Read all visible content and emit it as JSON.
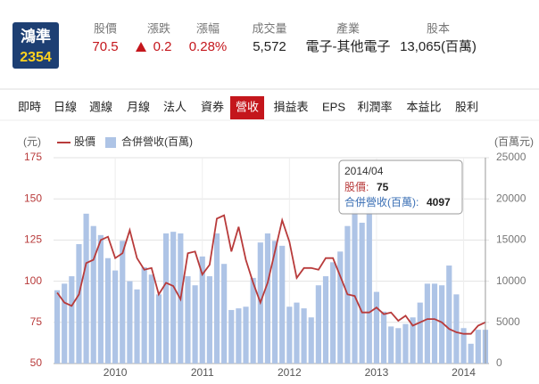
{
  "header": {
    "name": "鴻準",
    "code": "2354",
    "fields": [
      {
        "label": "股價",
        "value": "70.5"
      },
      {
        "label": "漲跌",
        "value": "0.2"
      },
      {
        "label": "漲幅",
        "value": "0.28%"
      },
      {
        "label": "成交量",
        "value": "5,572"
      },
      {
        "label": "產業",
        "value": "電子-其他電子"
      },
      {
        "label": "股本",
        "value": "13,065(百萬)"
      }
    ]
  },
  "tabs": {
    "items": [
      "即時",
      "日線",
      "週線",
      "月線",
      "法人",
      "資券",
      "營收",
      "損益表",
      "EPS",
      "利潤率",
      "本益比",
      "股利"
    ],
    "active": 6
  },
  "chart_data": {
    "type": "bar-line",
    "ylabel": "(元)",
    "y2label": "(百萬元)",
    "categories": [
      null,
      null,
      null,
      null,
      null,
      null,
      null,
      null,
      "2010",
      null,
      null,
      null,
      null,
      null,
      null,
      null,
      null,
      null,
      null,
      null,
      "2011",
      null,
      null,
      null,
      null,
      null,
      null,
      null,
      null,
      null,
      null,
      null,
      "2012",
      null,
      null,
      null,
      null,
      null,
      null,
      null,
      null,
      null,
      null,
      null,
      "2013",
      null,
      null,
      null,
      null,
      null,
      null,
      null,
      null,
      null,
      null,
      null,
      "2014",
      null,
      null,
      null
    ],
    "series": [
      {
        "name": "股價",
        "type": "line",
        "axis": "y",
        "color": "#b83b3b",
        "values": [
          93,
          87,
          85,
          92,
          111,
          113,
          125,
          127,
          114,
          117,
          131,
          114,
          107,
          108,
          92,
          99,
          97,
          89,
          117,
          118,
          104,
          110,
          138,
          140,
          118,
          133,
          113,
          99,
          87,
          99,
          118,
          137,
          124,
          102,
          108,
          108,
          107,
          114,
          114,
          103,
          92,
          91,
          81,
          81,
          84,
          80,
          81,
          76,
          79,
          73,
          75,
          77,
          77,
          75,
          71,
          69,
          68,
          68,
          73,
          75
        ]
      },
      {
        "name": "合併營收(百萬)",
        "type": "bar",
        "axis": "y2",
        "color": "#aec4e6",
        "values": [
          8900,
          9700,
          10600,
          14500,
          18200,
          16700,
          15600,
          12800,
          11300,
          14900,
          10000,
          9000,
          11700,
          10800,
          8400,
          15800,
          16000,
          15800,
          10600,
          9500,
          13000,
          10600,
          15800,
          12100,
          6500,
          6700,
          6900,
          10400,
          14700,
          15800,
          14900,
          14300,
          6900,
          7400,
          6700,
          5600,
          9500,
          10600,
          12300,
          13600,
          16700,
          19900,
          17100,
          20600,
          8700,
          6300,
          4500,
          4300,
          4800,
          5600,
          7400,
          9700,
          9700,
          9500,
          11900,
          8400,
          4300,
          2400,
          4100,
          4097
        ]
      }
    ],
    "ylim": [
      50,
      175
    ],
    "yticks": [
      50,
      75,
      100,
      125,
      150,
      175
    ],
    "y2lim": [
      0,
      25000
    ],
    "y2ticks": [
      0,
      5000,
      10000,
      15000,
      20000,
      25000
    ],
    "grid": true,
    "legend": "top-left",
    "tooltip": {
      "title": "2014/04",
      "items": [
        {
          "label": "股價:",
          "value": 75,
          "color": "#b83b3b"
        },
        {
          "label": "合併營收(百萬):",
          "value": 4097,
          "color": "#3a6fb5"
        }
      ]
    }
  }
}
